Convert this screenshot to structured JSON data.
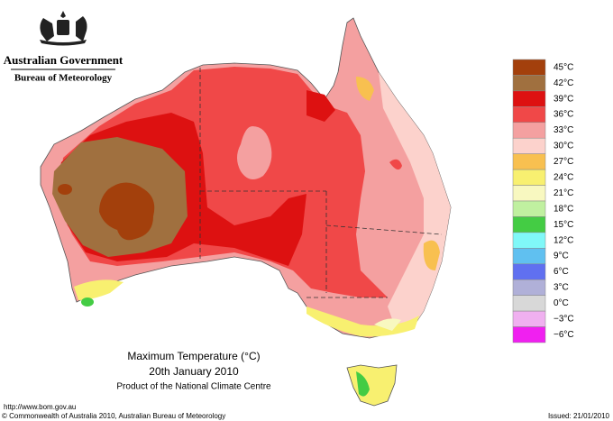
{
  "header": {
    "government": "Australian Government",
    "agency": "Bureau of Meteorology"
  },
  "legend": [
    {
      "label": "45°C",
      "color": "#a3400c"
    },
    {
      "label": "42°C",
      "color": "#a0703f"
    },
    {
      "label": "39°C",
      "color": "#dd1111"
    },
    {
      "label": "36°C",
      "color": "#f04848"
    },
    {
      "label": "33°C",
      "color": "#f4a0a0"
    },
    {
      "label": "30°C",
      "color": "#fcd2cc"
    },
    {
      "label": "27°C",
      "color": "#f8c050"
    },
    {
      "label": "24°C",
      "color": "#f8f070"
    },
    {
      "label": "21°C",
      "color": "#f8f8c0"
    },
    {
      "label": "18°C",
      "color": "#c0f0a0"
    },
    {
      "label": "15°C",
      "color": "#44cc44"
    },
    {
      "label": "12°C",
      "color": "#80f8f8"
    },
    {
      "label": "9°C",
      "color": "#60c0f0"
    },
    {
      "label": "6°C",
      "color": "#6070f0"
    },
    {
      "label": "3°C",
      "color": "#b0b0d8"
    },
    {
      "label": "0°C",
      "color": "#d8d8d8"
    },
    {
      "label": "−3°C",
      "color": "#f0b0f0"
    },
    {
      "label": "−6°C",
      "color": "#f020f0"
    }
  ],
  "caption": {
    "title": "Maximum Temperature (°C)",
    "date": "20th January 2010",
    "product": "Product of the National Climate Centre"
  },
  "footer": {
    "url": "http://www.bom.gov.au",
    "copyright": "© Commonwealth of Australia 2010, Australian Bureau of Meteorology",
    "issued": "Issued: 21/01/2010"
  }
}
